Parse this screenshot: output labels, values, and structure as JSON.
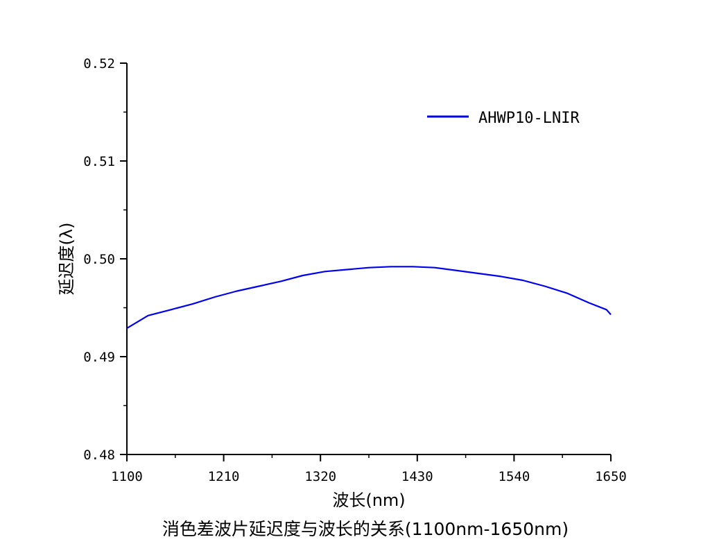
{
  "chart_data": {
    "type": "line",
    "title": "消色差波片延迟度与波长的关系(1100nm-1650nm)",
    "xlabel": "波长(nm)",
    "ylabel": "延迟度(λ)",
    "xlim": [
      1100,
      1650
    ],
    "ylim": [
      0.48,
      0.52
    ],
    "x_ticks": [
      1100,
      1210,
      1320,
      1430,
      1540,
      1650
    ],
    "x_tick_labels": [
      "1100",
      "1210",
      "1320",
      "1430",
      "1540",
      "1650"
    ],
    "y_ticks": [
      0.48,
      0.49,
      0.5,
      0.51,
      0.52
    ],
    "y_tick_labels": [
      "0.48",
      "0.49",
      "0.50",
      "0.51",
      "0.52"
    ],
    "grid": false,
    "legend_position": "top-right",
    "series": [
      {
        "name": "AHWP10-LNIR",
        "color": "#0000ee",
        "x": [
          1100,
          1124,
          1150,
          1175,
          1200,
          1225,
          1250,
          1275,
          1300,
          1325,
          1350,
          1375,
          1400,
          1425,
          1450,
          1475,
          1500,
          1525,
          1550,
          1575,
          1600,
          1625,
          1645,
          1650
        ],
        "y": [
          0.4929,
          0.4942,
          0.4948,
          0.4954,
          0.4961,
          0.4967,
          0.4972,
          0.4977,
          0.4983,
          0.4987,
          0.4989,
          0.4991,
          0.4992,
          0.4992,
          0.4991,
          0.4988,
          0.4985,
          0.4982,
          0.4978,
          0.4972,
          0.4965,
          0.4955,
          0.4948,
          0.4943
        ]
      }
    ]
  }
}
